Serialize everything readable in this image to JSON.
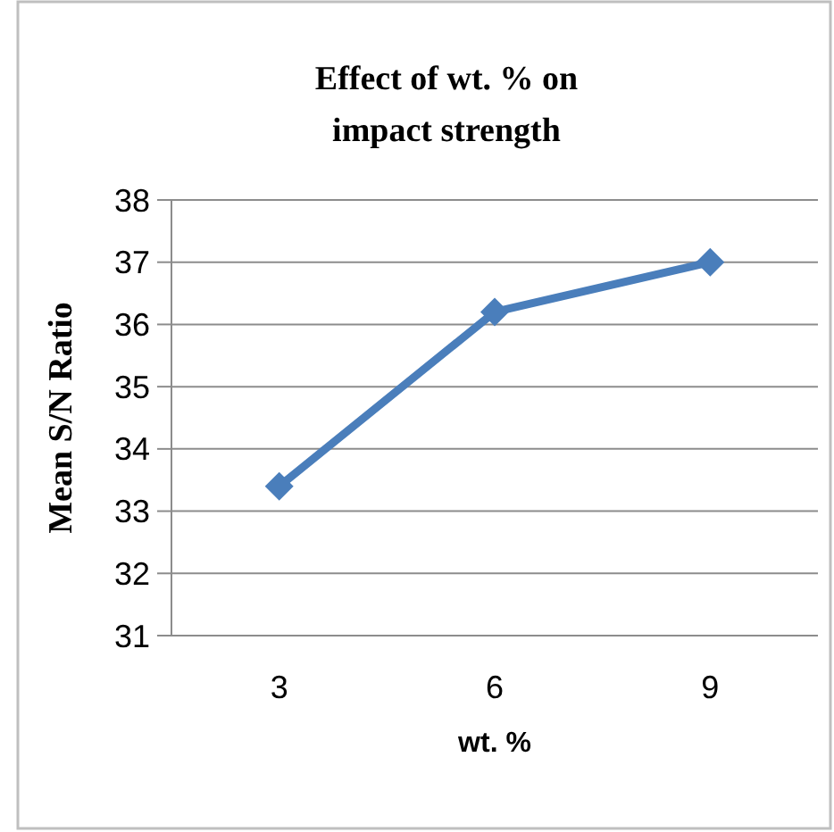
{
  "chart_data": {
    "type": "line",
    "title": "Effect of wt. % on impact strength",
    "xlabel": "wt. %",
    "ylabel": "Mean S/N Ratio",
    "categories": [
      "3",
      "6",
      "9"
    ],
    "series": [
      {
        "color": "#4a7ebb",
        "values": [
          33.4,
          36.2,
          37.0
        ]
      }
    ],
    "ylim": [
      31,
      38
    ],
    "yticks": [
      31,
      32,
      33,
      34,
      35,
      36,
      37,
      38
    ],
    "grid": "y",
    "marker": "diamond",
    "line_style": "solid"
  }
}
